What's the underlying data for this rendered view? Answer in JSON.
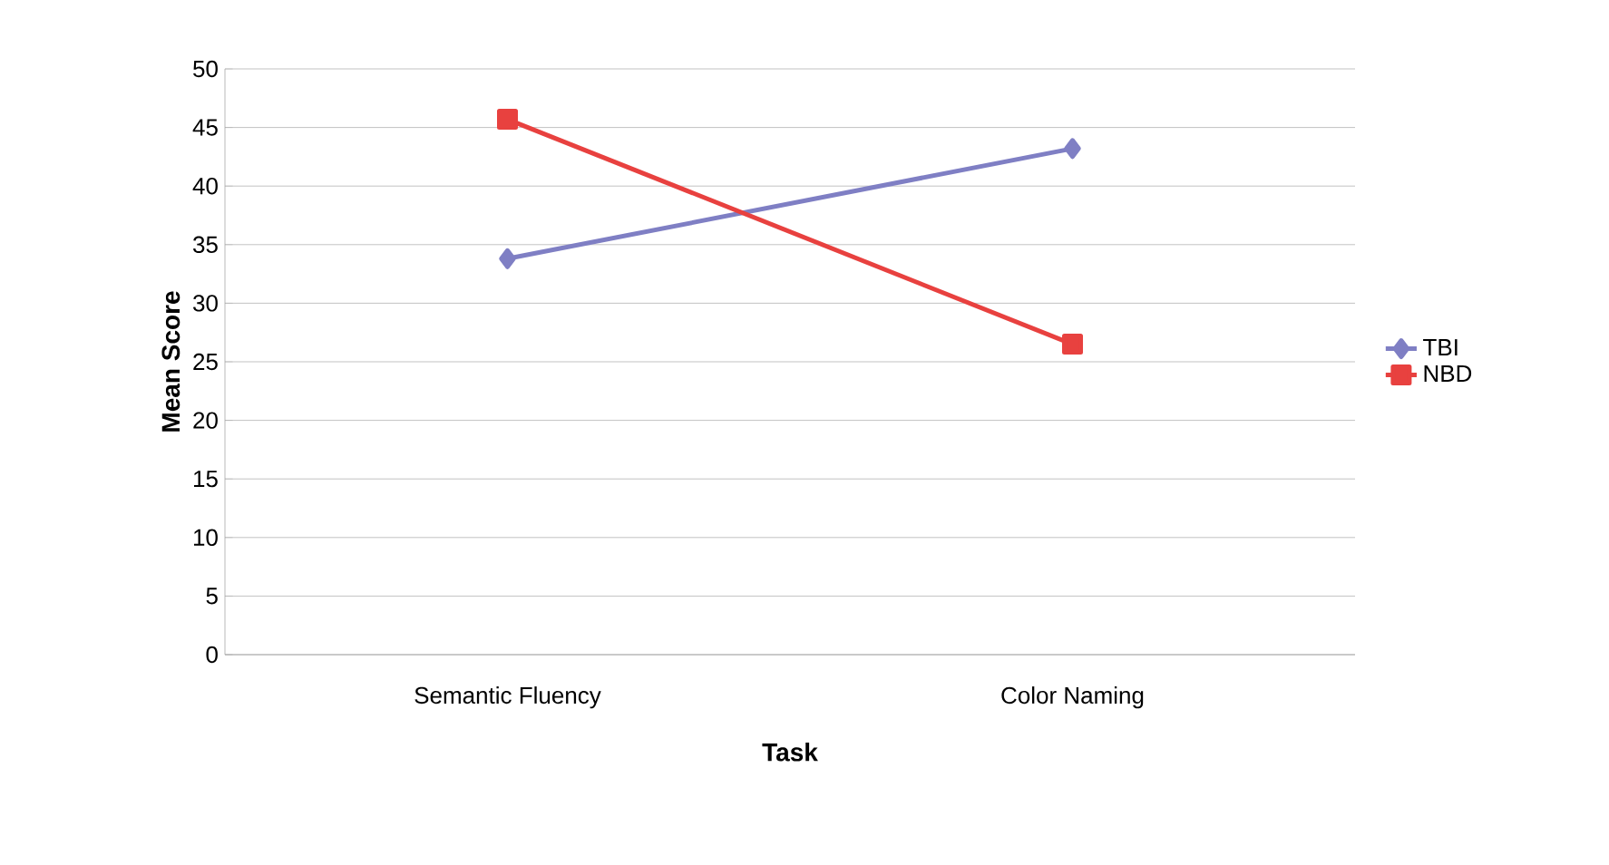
{
  "chart_data": {
    "type": "line",
    "xlabel": "Task",
    "ylabel": "Mean Score",
    "categories": [
      "Semantic Fluency",
      "Color Naming"
    ],
    "series": [
      {
        "name": "TBI",
        "color": "#7f7fc4",
        "values": [
          33.8,
          43.2
        ],
        "marker": "diamond"
      },
      {
        "name": "NBD",
        "color": "#e8413f",
        "values": [
          45.7,
          26.5
        ],
        "marker": "square"
      }
    ],
    "ylim": [
      0,
      50
    ],
    "yticks": [
      0,
      5,
      10,
      15,
      20,
      25,
      30,
      35,
      40,
      45,
      50
    ],
    "grid": "y",
    "legend": "right",
    "line_style": "solid"
  }
}
